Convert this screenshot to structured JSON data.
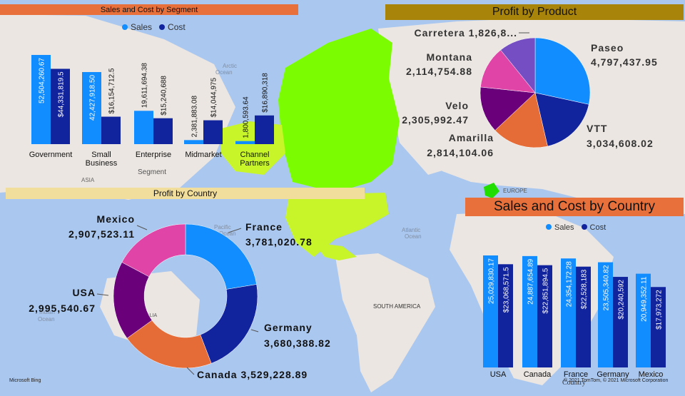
{
  "colors": {
    "sales": "#118dff",
    "cost": "#12239e",
    "ocean": "#aac7ef",
    "land": "#ebe6e1",
    "na_land": "#7cfc00",
    "na_land2": "#c8f529"
  },
  "segment_panel": {
    "title": "Sales and Cost by Segment",
    "x_axis_title": "Segment",
    "legend_sales": "Sales",
    "legend_cost": "Cost",
    "title_bg": "#e8703a"
  },
  "product_panel": {
    "title": "Profit by Product",
    "title_bg": "#a8840a"
  },
  "country_profit_panel": {
    "title": "Profit by Country",
    "title_bg": "#f2de9c"
  },
  "country_sales_panel": {
    "title": "Sales and Cost by Country",
    "x_axis_title": "Country",
    "legend_sales": "Sales",
    "legend_cost": "Cost",
    "title_bg": "#e8703a"
  },
  "map_labels": {
    "arctic": "Arctic",
    "arctic2": "Ocean",
    "asia": "ASIA",
    "asia2": "ASIA",
    "europe": "EUROPE",
    "atlantic": "Atlantic",
    "atlantic2": "Ocean",
    "south_america": "SOUTH AMERICA",
    "pacific": "Pacific",
    "pacific2": "Ocean",
    "indian": "Indian",
    "indian2": "Ocean",
    "australia": "ALIA",
    "bing": "Microsoft Bing",
    "copyright": "© 2021 TomTom, © 2021 Microsoft Corporation"
  },
  "chart_data": [
    {
      "type": "bar",
      "title": "Sales and Cost by Segment",
      "xlabel": "Segment",
      "categories": [
        "Government",
        "Small Business",
        "Enterprise",
        "Midmarket",
        "Channel Partners"
      ],
      "category_lines": [
        [
          "Government"
        ],
        [
          "Small",
          "Business"
        ],
        [
          "Enterprise"
        ],
        [
          "Midmarket"
        ],
        [
          "Channel",
          "Partners"
        ]
      ],
      "series": [
        {
          "name": "Sales",
          "values": [
            52504260.67,
            42427918.5,
            19611694.38,
            2381883.08,
            1800593.64
          ],
          "labels": [
            "52,504,260.67",
            "42,427,918.50",
            "19,611,694.38",
            "2,381,883.08",
            "1,800,593.64"
          ]
        },
        {
          "name": "Cost",
          "values": [
            44331819.5,
            16154712.5,
            15240688,
            14044975,
            16890318
          ],
          "labels": [
            "$44,331,819.5",
            "$16,154,712.5",
            "$15,240,688",
            "$14,044,975",
            "$16,890,318"
          ]
        }
      ]
    },
    {
      "type": "pie",
      "title": "Profit by Product",
      "slices": [
        {
          "name": "Paseo",
          "value": 4797437.95,
          "label": "4,797,437.95",
          "color": "#118dff"
        },
        {
          "name": "VTT",
          "value": 3034608.02,
          "label": "3,034,608.02",
          "color": "#12239e"
        },
        {
          "name": "Amarilla",
          "value": 2814104.06,
          "label": "2,814,104.06",
          "color": "#e66c37"
        },
        {
          "name": "Velo",
          "value": 2305992.47,
          "label": "2,305,992.47",
          "color": "#6b007b"
        },
        {
          "name": "Montana",
          "value": 2114754.88,
          "label": "2,114,754.88",
          "color": "#e044a7"
        },
        {
          "name": "Carretera",
          "value": 1826800,
          "label": "Carretera 1,826,8...",
          "color": "#744ec2"
        }
      ]
    },
    {
      "type": "pie",
      "title": "Profit by Country",
      "donut": true,
      "slices": [
        {
          "name": "France",
          "value": 3781020.78,
          "label": "3,781,020.78",
          "color": "#118dff"
        },
        {
          "name": "Germany",
          "value": 3680388.82,
          "label": "3,680,388.82",
          "color": "#12239e"
        },
        {
          "name": "Canada",
          "value": 3529228.89,
          "label": "Canada 3,529,228.89",
          "color": "#e66c37"
        },
        {
          "name": "USA",
          "value": 2995540.67,
          "label": "2,995,540.67",
          "color": "#6b007b"
        },
        {
          "name": "Mexico",
          "value": 2907523.11,
          "label": "2,907,523.11",
          "color": "#e044a7"
        }
      ]
    },
    {
      "type": "bar",
      "title": "Sales and Cost by Country",
      "xlabel": "Country",
      "categories": [
        "USA",
        "Canada",
        "France",
        "Germany",
        "Mexico"
      ],
      "series": [
        {
          "name": "Sales",
          "values": [
            25029830.17,
            24887654.89,
            24354172.28,
            23505340.82,
            20949352.11
          ],
          "labels": [
            "25,029,830.17",
            "24,887,654.89",
            "24,354,172.28",
            "23,505,340.82",
            "20,949,352.11"
          ]
        },
        {
          "name": "Cost",
          "values": [
            23068571.5,
            22851894.5,
            22528183,
            20240592,
            17973272
          ],
          "labels": [
            "$23,068,571.5",
            "$22,851,894.5",
            "$22,528,183",
            "$20,240,592",
            "$17,973,272"
          ]
        }
      ]
    }
  ]
}
